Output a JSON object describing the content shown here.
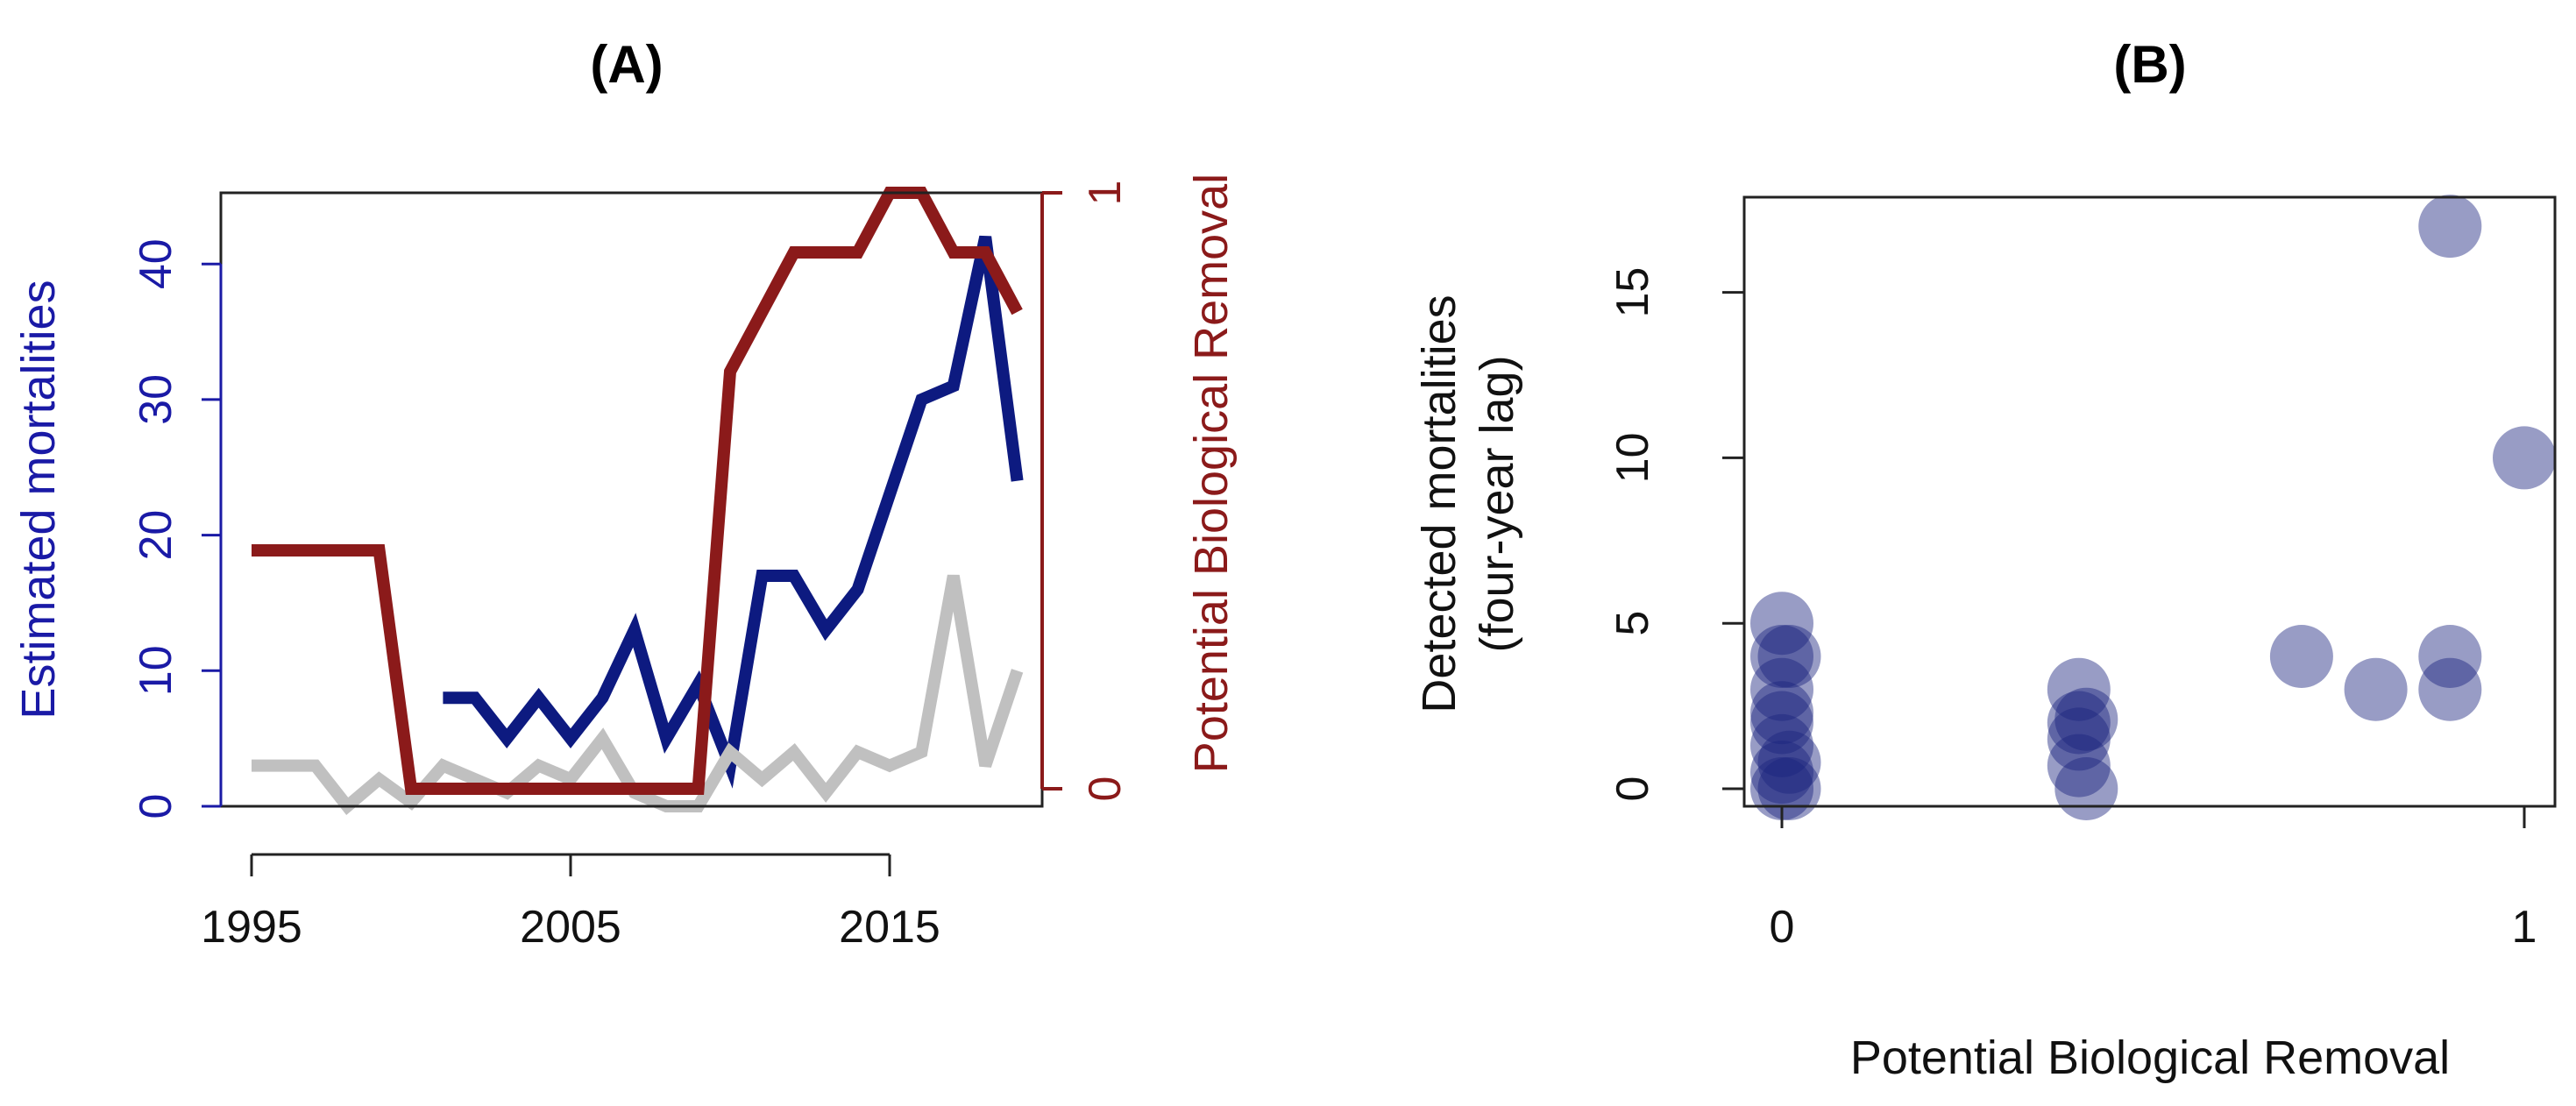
{
  "chart_data": [
    {
      "type": "line",
      "title": "(A)",
      "xlabel": "",
      "ylabel": "Estimated mortalities",
      "ylabel_right": "Potential Biological Removal",
      "xlim": [
        1995,
        2019
      ],
      "ylim": [
        0,
        45
      ],
      "ylim_right": [
        0,
        1
      ],
      "x_ticks": [
        1995,
        2005,
        2015
      ],
      "y_ticks": [
        0,
        10,
        20,
        30,
        40
      ],
      "y_ticks_right": [
        0,
        1
      ],
      "grid": false,
      "colors": {
        "left_axis": "#1a1aa6",
        "right_axis": "#8b1a1a"
      },
      "series": [
        {
          "axis": "left",
          "color": "#0d1a80",
          "points": [
            [
              2001,
              8
            ],
            [
              2002,
              8
            ],
            [
              2003,
              5
            ],
            [
              2004,
              8
            ],
            [
              2005,
              5
            ],
            [
              2006,
              8
            ],
            [
              2007,
              13
            ],
            [
              2008,
              5
            ],
            [
              2009,
              9
            ],
            [
              2010,
              3
            ],
            [
              2011,
              17
            ],
            [
              2012,
              17
            ],
            [
              2013,
              13
            ],
            [
              2014,
              16
            ],
            [
              2015,
              23
            ],
            [
              2016,
              30
            ],
            [
              2017,
              31
            ],
            [
              2018,
              42
            ],
            [
              2019,
              24
            ]
          ]
        },
        {
          "axis": "left",
          "color": "#c0c0c0",
          "points": [
            [
              1995,
              3
            ],
            [
              1996,
              3
            ],
            [
              1997,
              3
            ],
            [
              1998,
              0
            ],
            [
              1999,
              2
            ],
            [
              2000,
              0.3
            ],
            [
              2001,
              3
            ],
            [
              2002,
              2
            ],
            [
              2003,
              1
            ],
            [
              2004,
              3
            ],
            [
              2005,
              2
            ],
            [
              2006,
              5
            ],
            [
              2007,
              1
            ],
            [
              2008,
              0
            ],
            [
              2009,
              0
            ],
            [
              2010,
              4
            ],
            [
              2011,
              2
            ],
            [
              2012,
              4
            ],
            [
              2013,
              1
            ],
            [
              2014,
              4
            ],
            [
              2015,
              3
            ],
            [
              2016,
              4
            ],
            [
              2017,
              17
            ],
            [
              2018,
              3
            ],
            [
              2019,
              10
            ]
          ]
        },
        {
          "axis": "right",
          "color": "#8b1a1a",
          "points": [
            [
              1995,
              0.4
            ],
            [
              1996,
              0.4
            ],
            [
              1997,
              0.4
            ],
            [
              1998,
              0.4
            ],
            [
              1999,
              0.4
            ],
            [
              2000,
              0
            ],
            [
              2001,
              0
            ],
            [
              2002,
              0
            ],
            [
              2003,
              0
            ],
            [
              2004,
              0
            ],
            [
              2005,
              0
            ],
            [
              2006,
              0
            ],
            [
              2007,
              0
            ],
            [
              2008,
              0
            ],
            [
              2009,
              0
            ],
            [
              2010,
              0.7
            ],
            [
              2011,
              0.8
            ],
            [
              2012,
              0.9
            ],
            [
              2013,
              0.9
            ],
            [
              2014,
              0.9
            ],
            [
              2015,
              1
            ],
            [
              2016,
              1
            ],
            [
              2017,
              0.9
            ],
            [
              2018,
              0.9
            ],
            [
              2019,
              0.8
            ]
          ]
        }
      ]
    },
    {
      "type": "scatter",
      "title": "(B)",
      "xlabel": "Potential Biological Removal",
      "ylabel": "Detected mortalities\n(four-year lag)",
      "xlim": [
        0,
        1
      ],
      "ylim": [
        0,
        17
      ],
      "x_ticks": [
        0,
        1
      ],
      "y_ticks": [
        0,
        5,
        10,
        15
      ],
      "grid": false,
      "marker_color": "#1a237e",
      "points": [
        [
          0,
          5
        ],
        [
          0.01,
          4
        ],
        [
          0,
          4
        ],
        [
          0,
          3
        ],
        [
          0,
          2.3
        ],
        [
          0,
          2
        ],
        [
          0,
          1.3
        ],
        [
          0.01,
          0.8
        ],
        [
          0,
          0.5
        ],
        [
          0.01,
          0
        ],
        [
          0,
          0
        ],
        [
          0.4,
          3
        ],
        [
          0.41,
          2.1
        ],
        [
          0.4,
          2
        ],
        [
          0.4,
          1.5
        ],
        [
          0.4,
          0.7
        ],
        [
          0.41,
          0
        ],
        [
          0.7,
          4
        ],
        [
          0.8,
          3
        ],
        [
          0.9,
          17
        ],
        [
          0.9,
          4
        ],
        [
          0.9,
          3
        ],
        [
          1,
          10
        ]
      ]
    }
  ]
}
